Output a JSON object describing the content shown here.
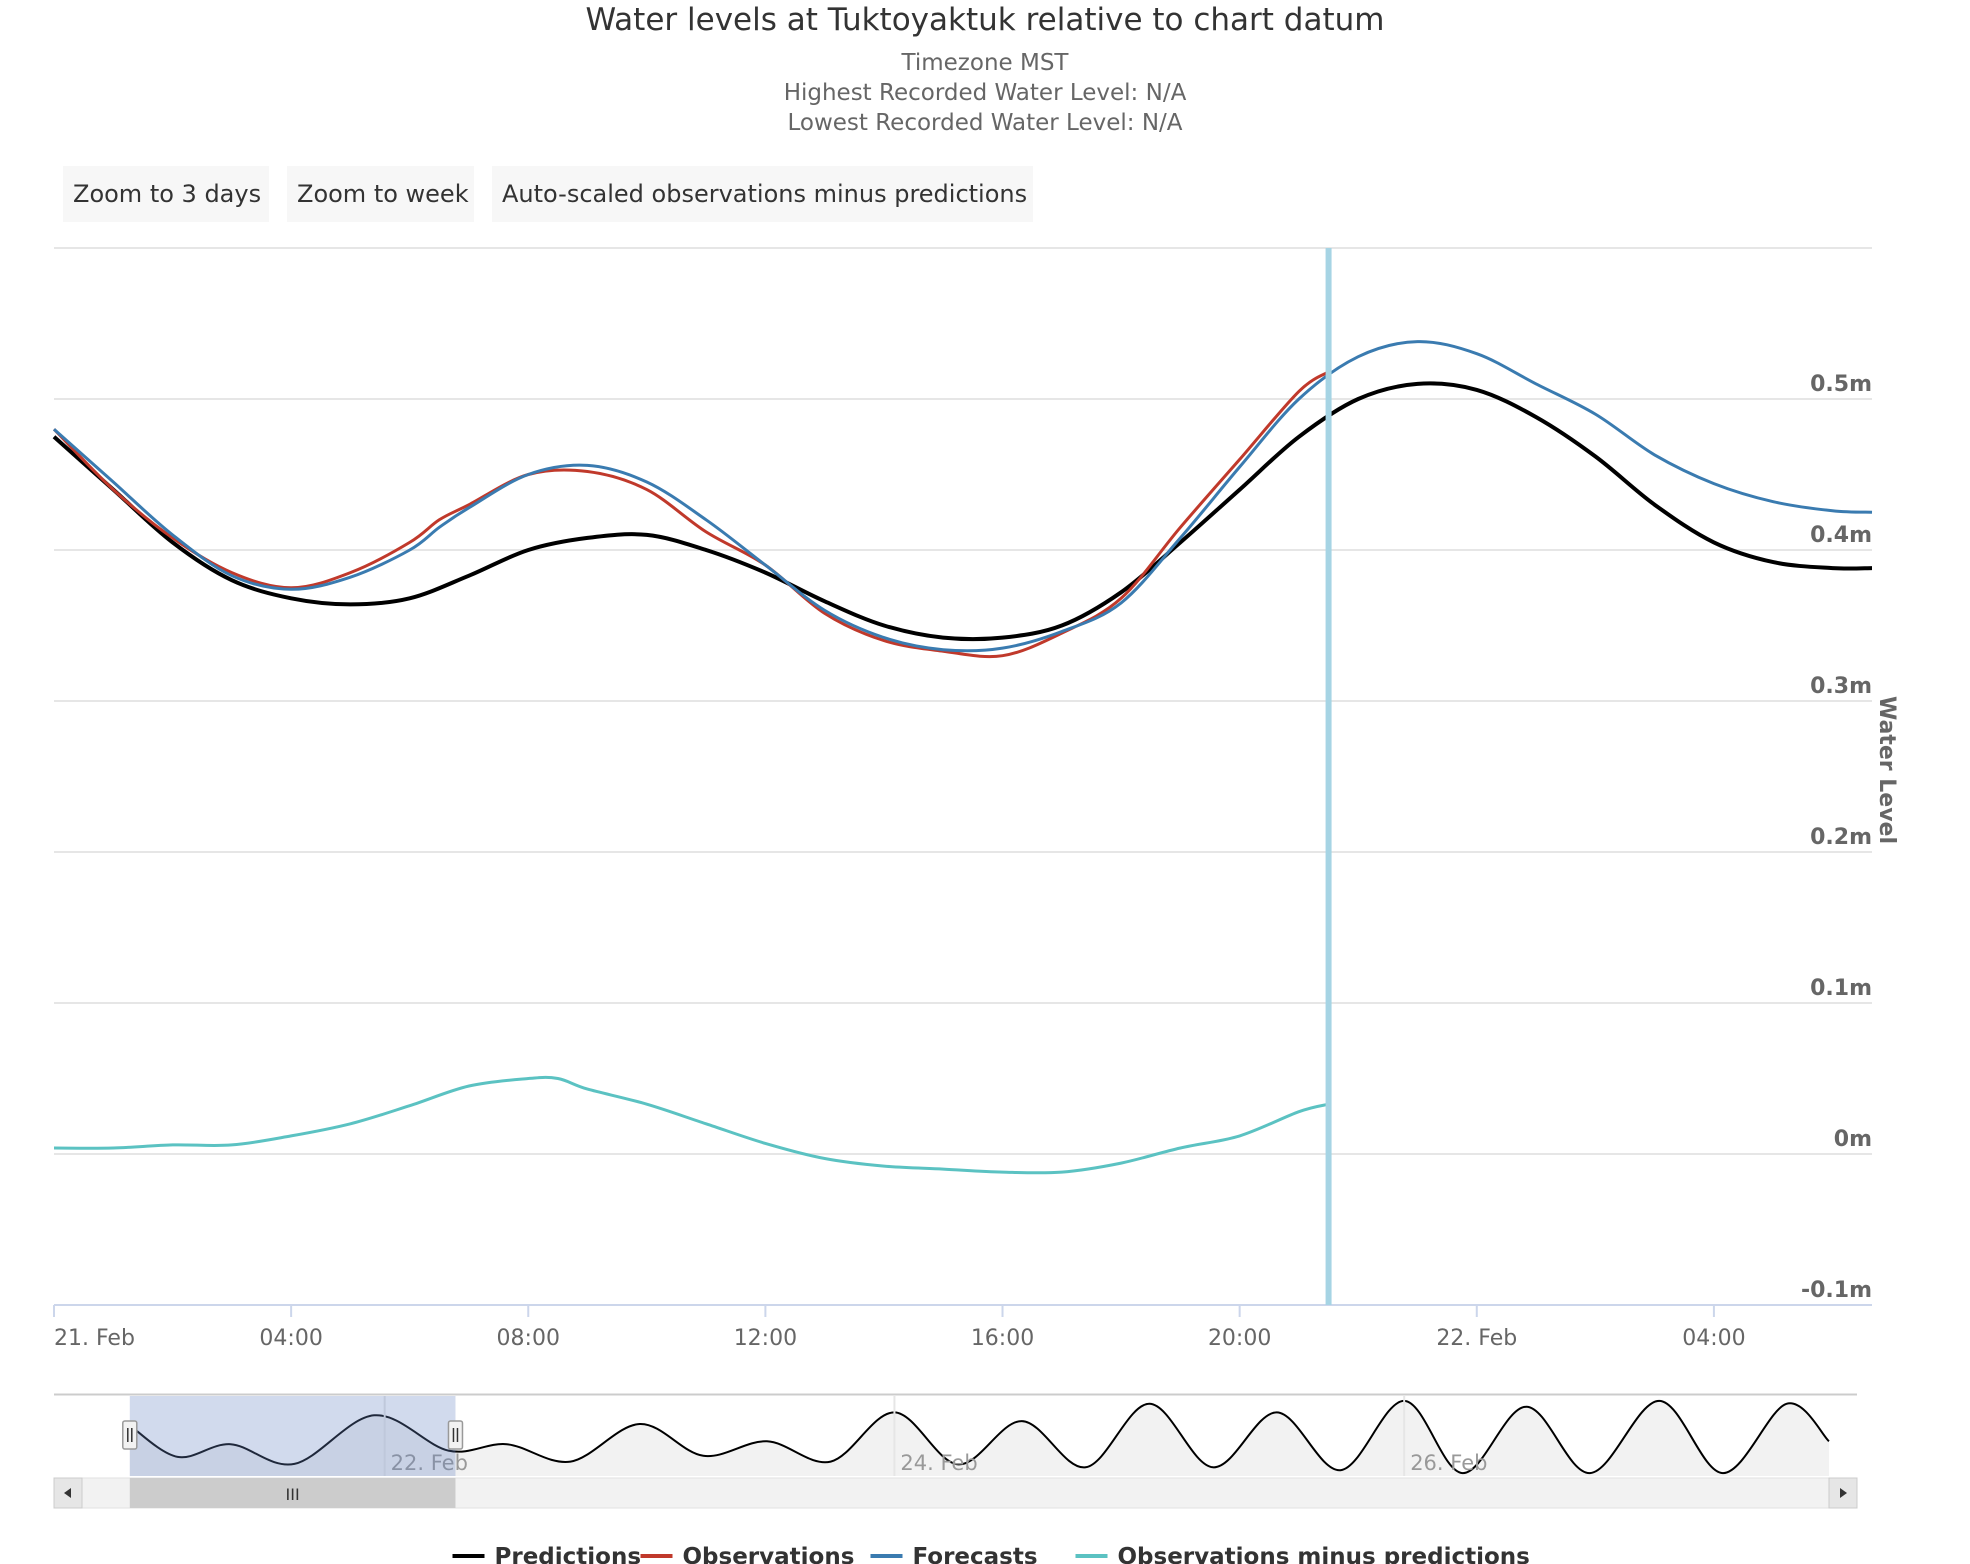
{
  "chart": {
    "title": "Water levels at Tuktoyaktuk relative to chart datum",
    "subtitle_lines": [
      "Timezone MST",
      "Highest Recorded Water Level: N/A",
      "Lowest Recorded Water Level: N/A"
    ]
  },
  "zoom_buttons": [
    "Zoom to 3 days",
    "Zoom to week",
    "Auto-scaled observations minus predictions"
  ],
  "navigator": {
    "labels": [
      "22. Feb",
      "24. Feb",
      "26. Feb"
    ],
    "scroll_handle_glyph": "III"
  },
  "colors": {
    "predictions": "#000000",
    "observations": "#c0392b",
    "forecasts": "#3a7bb0",
    "residuals": "#5bc2c2",
    "now_line": "#a6d4e4"
  },
  "chart_data": {
    "type": "line",
    "title": "Water levels at Tuktoyaktuk relative to chart datum",
    "ylabel": "Water Level",
    "y_unit": "m",
    "ylim": [
      -0.1,
      0.6
    ],
    "yticks": [
      -0.1,
      0,
      0.1,
      0.2,
      0.3,
      0.4,
      0.5
    ],
    "ytick_labels": [
      "-0.1m",
      "0m",
      "0.1m",
      "0.2m",
      "0.3m",
      "0.4m",
      "0.5m"
    ],
    "xlim": [
      "2021-02-21T00:00",
      "2021-02-22T06:40"
    ],
    "xticks": [
      "2021-02-21T00:00",
      "2021-02-21T04:00",
      "2021-02-21T08:00",
      "2021-02-21T12:00",
      "2021-02-21T16:00",
      "2021-02-21T20:00",
      "2021-02-22T00:00",
      "2021-02-22T04:00"
    ],
    "xtick_labels": [
      "21. Feb",
      "04:00",
      "08:00",
      "12:00",
      "16:00",
      "20:00",
      "22. Feb",
      "04:00"
    ],
    "now_marker": "2021-02-21T21:30",
    "legend_position": "bottom",
    "grid": true,
    "series": [
      {
        "name": "Predictions",
        "points": [
          [
            "2021-02-21T00:00",
            0.475
          ],
          [
            "2021-02-21T01:00",
            0.44
          ],
          [
            "2021-02-21T02:00",
            0.405
          ],
          [
            "2021-02-21T03:00",
            0.38
          ],
          [
            "2021-02-21T04:00",
            0.368
          ],
          [
            "2021-02-21T05:00",
            0.364
          ],
          [
            "2021-02-21T06:00",
            0.368
          ],
          [
            "2021-02-21T07:00",
            0.383
          ],
          [
            "2021-02-21T08:00",
            0.4
          ],
          [
            "2021-02-21T09:00",
            0.408
          ],
          [
            "2021-02-21T10:00",
            0.41
          ],
          [
            "2021-02-21T11:00",
            0.4
          ],
          [
            "2021-02-21T12:00",
            0.385
          ],
          [
            "2021-02-21T13:00",
            0.366
          ],
          [
            "2021-02-21T14:00",
            0.35
          ],
          [
            "2021-02-21T15:00",
            0.342
          ],
          [
            "2021-02-21T16:00",
            0.342
          ],
          [
            "2021-02-21T17:00",
            0.35
          ],
          [
            "2021-02-21T18:00",
            0.372
          ],
          [
            "2021-02-21T19:00",
            0.405
          ],
          [
            "2021-02-21T20:00",
            0.44
          ],
          [
            "2021-02-21T21:00",
            0.475
          ],
          [
            "2021-02-21T22:00",
            0.5
          ],
          [
            "2021-02-21T23:00",
            0.51
          ],
          [
            "2021-02-22T00:00",
            0.506
          ],
          [
            "2021-02-22T01:00",
            0.488
          ],
          [
            "2021-02-22T02:00",
            0.462
          ],
          [
            "2021-02-22T03:00",
            0.43
          ],
          [
            "2021-02-22T04:00",
            0.405
          ],
          [
            "2021-02-22T05:00",
            0.392
          ],
          [
            "2021-02-22T06:00",
            0.388
          ],
          [
            "2021-02-22T06:40",
            0.388
          ]
        ]
      },
      {
        "name": "Observations",
        "points": [
          [
            "2021-02-21T00:00",
            0.48
          ],
          [
            "2021-02-21T01:00",
            0.44
          ],
          [
            "2021-02-21T02:00",
            0.408
          ],
          [
            "2021-02-21T03:00",
            0.385
          ],
          [
            "2021-02-21T04:00",
            0.375
          ],
          [
            "2021-02-21T05:00",
            0.385
          ],
          [
            "2021-02-21T06:00",
            0.405
          ],
          [
            "2021-02-21T06:30",
            0.42
          ],
          [
            "2021-02-21T07:00",
            0.43
          ],
          [
            "2021-02-21T08:00",
            0.45
          ],
          [
            "2021-02-21T09:00",
            0.452
          ],
          [
            "2021-02-21T10:00",
            0.44
          ],
          [
            "2021-02-21T11:00",
            0.412
          ],
          [
            "2021-02-21T12:00",
            0.39
          ],
          [
            "2021-02-21T13:00",
            0.358
          ],
          [
            "2021-02-21T14:00",
            0.34
          ],
          [
            "2021-02-21T15:00",
            0.333
          ],
          [
            "2021-02-21T16:00",
            0.33
          ],
          [
            "2021-02-21T17:00",
            0.345
          ],
          [
            "2021-02-21T18:00",
            0.368
          ],
          [
            "2021-02-21T19:00",
            0.415
          ],
          [
            "2021-02-21T20:00",
            0.46
          ],
          [
            "2021-02-21T21:00",
            0.505
          ],
          [
            "2021-02-21T21:30",
            0.518
          ]
        ]
      },
      {
        "name": "Forecasts",
        "points": [
          [
            "2021-02-21T00:00",
            0.48
          ],
          [
            "2021-02-21T01:00",
            0.445
          ],
          [
            "2021-02-21T02:00",
            0.41
          ],
          [
            "2021-02-21T03:00",
            0.383
          ],
          [
            "2021-02-21T04:00",
            0.374
          ],
          [
            "2021-02-21T05:00",
            0.382
          ],
          [
            "2021-02-21T06:00",
            0.4
          ],
          [
            "2021-02-21T06:30",
            0.415
          ],
          [
            "2021-02-21T07:00",
            0.428
          ],
          [
            "2021-02-21T08:00",
            0.45
          ],
          [
            "2021-02-21T09:00",
            0.456
          ],
          [
            "2021-02-21T10:00",
            0.445
          ],
          [
            "2021-02-21T11:00",
            0.42
          ],
          [
            "2021-02-21T12:00",
            0.39
          ],
          [
            "2021-02-21T13:00",
            0.36
          ],
          [
            "2021-02-21T14:00",
            0.342
          ],
          [
            "2021-02-21T15:00",
            0.334
          ],
          [
            "2021-02-21T16:00",
            0.335
          ],
          [
            "2021-02-21T17:00",
            0.346
          ],
          [
            "2021-02-21T18:00",
            0.365
          ],
          [
            "2021-02-21T19:00",
            0.408
          ],
          [
            "2021-02-21T20:00",
            0.455
          ],
          [
            "2021-02-21T21:00",
            0.5
          ],
          [
            "2021-02-21T22:00",
            0.528
          ],
          [
            "2021-02-21T23:00",
            0.538
          ],
          [
            "2021-02-22T00:00",
            0.53
          ],
          [
            "2021-02-22T01:00",
            0.51
          ],
          [
            "2021-02-22T02:00",
            0.49
          ],
          [
            "2021-02-22T03:00",
            0.463
          ],
          [
            "2021-02-22T04:00",
            0.444
          ],
          [
            "2021-02-22T05:00",
            0.432
          ],
          [
            "2021-02-22T06:00",
            0.426
          ],
          [
            "2021-02-22T06:40",
            0.425
          ]
        ]
      },
      {
        "name": "Observations minus predictions",
        "points": [
          [
            "2021-02-21T00:00",
            0.004
          ],
          [
            "2021-02-21T01:00",
            0.004
          ],
          [
            "2021-02-21T02:00",
            0.006
          ],
          [
            "2021-02-21T03:00",
            0.006
          ],
          [
            "2021-02-21T04:00",
            0.012
          ],
          [
            "2021-02-21T05:00",
            0.02
          ],
          [
            "2021-02-21T06:00",
            0.032
          ],
          [
            "2021-02-21T07:00",
            0.045
          ],
          [
            "2021-02-21T08:00",
            0.05
          ],
          [
            "2021-02-21T08:30",
            0.05
          ],
          [
            "2021-02-21T09:00",
            0.043
          ],
          [
            "2021-02-21T10:00",
            0.033
          ],
          [
            "2021-02-21T11:00",
            0.02
          ],
          [
            "2021-02-21T12:00",
            0.007
          ],
          [
            "2021-02-21T13:00",
            -0.003
          ],
          [
            "2021-02-21T14:00",
            -0.008
          ],
          [
            "2021-02-21T15:00",
            -0.01
          ],
          [
            "2021-02-21T16:00",
            -0.012
          ],
          [
            "2021-02-21T17:00",
            -0.012
          ],
          [
            "2021-02-21T18:00",
            -0.006
          ],
          [
            "2021-02-21T19:00",
            0.004
          ],
          [
            "2021-02-21T20:00",
            0.012
          ],
          [
            "2021-02-21T21:00",
            0.028
          ],
          [
            "2021-02-21T21:30",
            0.033
          ]
        ]
      }
    ],
    "navigator_series": {
      "name": "Predictions",
      "points": [
        [
          "2021-02-21T00:00",
          0.475
        ],
        [
          "2021-02-21T04:30",
          0.366
        ],
        [
          "2021-02-21T09:30",
          0.41
        ],
        [
          "2021-02-21T15:30",
          0.342
        ],
        [
          "2021-02-21T23:00",
          0.51
        ],
        [
          "2021-02-22T06:00",
          0.388
        ],
        [
          "2021-02-22T11:30",
          0.41
        ],
        [
          "2021-02-22T17:30",
          0.35
        ],
        [
          "2021-02-23T00:00",
          0.48
        ],
        [
          "2021-02-23T06:00",
          0.37
        ],
        [
          "2021-02-23T12:00",
          0.42
        ],
        [
          "2021-02-23T18:00",
          0.35
        ],
        [
          "2021-02-24T00:00",
          0.52
        ],
        [
          "2021-02-24T06:00",
          0.34
        ],
        [
          "2021-02-24T12:00",
          0.49
        ],
        [
          "2021-02-24T18:00",
          0.33
        ],
        [
          "2021-02-25T00:00",
          0.55
        ],
        [
          "2021-02-25T06:00",
          0.33
        ],
        [
          "2021-02-25T12:00",
          0.52
        ],
        [
          "2021-02-25T18:00",
          0.32
        ],
        [
          "2021-02-26T00:00",
          0.56
        ],
        [
          "2021-02-26T05:30",
          0.31
        ],
        [
          "2021-02-26T11:30",
          0.54
        ],
        [
          "2021-02-26T17:30",
          0.31
        ],
        [
          "2021-02-27T00:00",
          0.56
        ],
        [
          "2021-02-27T06:00",
          0.31
        ],
        [
          "2021-02-27T12:00",
          0.55
        ],
        [
          "2021-02-27T16:00",
          0.42
        ]
      ],
      "xlim": [
        "2021-02-20T19:30",
        "2021-02-27T16:00"
      ],
      "ylim": [
        0.3,
        0.57
      ],
      "selection": [
        "2021-02-21T00:00",
        "2021-02-22T06:40"
      ],
      "xticks": [
        "2021-02-22T00:00",
        "2021-02-24T00:00",
        "2021-02-26T00:00"
      ]
    }
  },
  "legend": {
    "items": [
      {
        "label": "Predictions",
        "color": "#000000"
      },
      {
        "label": "Observations",
        "color": "#c0392b"
      },
      {
        "label": "Forecasts",
        "color": "#3a7bb0"
      },
      {
        "label": "Observations minus predictions",
        "color": "#5bc2c2"
      }
    ]
  }
}
